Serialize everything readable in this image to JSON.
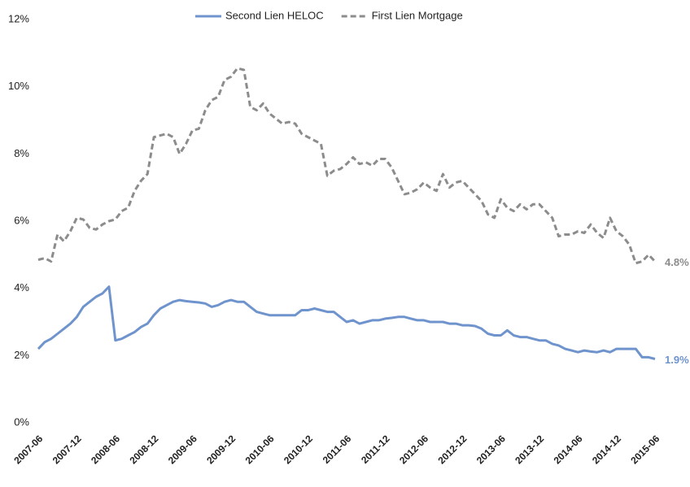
{
  "chart_data": {
    "type": "line",
    "categories": [
      "2007-06",
      null,
      null,
      null,
      null,
      null,
      "2007-12",
      null,
      null,
      null,
      null,
      null,
      "2008-06",
      null,
      null,
      null,
      null,
      null,
      "2008-12",
      null,
      null,
      null,
      null,
      null,
      "2009-06",
      null,
      null,
      null,
      null,
      null,
      "2009-12",
      null,
      null,
      null,
      null,
      null,
      "2010-06",
      null,
      null,
      null,
      null,
      null,
      "2010-12",
      null,
      null,
      null,
      null,
      null,
      "2011-06",
      null,
      null,
      null,
      null,
      null,
      "2011-12",
      null,
      null,
      null,
      null,
      null,
      "2012-06",
      null,
      null,
      null,
      null,
      null,
      "2012-12",
      null,
      null,
      null,
      null,
      null,
      "2013-06",
      null,
      null,
      null,
      null,
      null,
      "2013-12",
      null,
      null,
      null,
      null,
      null,
      "2014-06",
      null,
      null,
      null,
      null,
      null,
      "2014-12",
      null,
      null,
      null,
      null,
      null,
      "2015-06"
    ],
    "series": [
      {
        "name": "Second Lien HELOC",
        "color": "#6f94cd",
        "style": "solid",
        "values": [
          2.2,
          2.4,
          2.5,
          2.65,
          2.8,
          2.95,
          3.15,
          3.45,
          3.6,
          3.75,
          3.85,
          4.05,
          2.45,
          2.5,
          2.6,
          2.7,
          2.85,
          2.95,
          3.2,
          3.4,
          3.5,
          3.6,
          3.65,
          3.62,
          3.6,
          3.58,
          3.55,
          3.45,
          3.5,
          3.6,
          3.65,
          3.6,
          3.6,
          3.45,
          3.3,
          3.25,
          3.2,
          3.2,
          3.2,
          3.2,
          3.2,
          3.35,
          3.35,
          3.4,
          3.35,
          3.3,
          3.3,
          3.15,
          3.0,
          3.05,
          2.95,
          3.0,
          3.05,
          3.05,
          3.1,
          3.12,
          3.15,
          3.15,
          3.1,
          3.05,
          3.05,
          3.0,
          3.0,
          3.0,
          2.95,
          2.95,
          2.9,
          2.9,
          2.88,
          2.8,
          2.65,
          2.6,
          2.6,
          2.75,
          2.6,
          2.55,
          2.55,
          2.5,
          2.45,
          2.45,
          2.35,
          2.3,
          2.2,
          2.15,
          2.1,
          2.15,
          2.12,
          2.1,
          2.15,
          2.1,
          2.2,
          2.2,
          2.2,
          2.2,
          1.95,
          1.95,
          1.9
        ],
        "value_labels": [
          null,
          null,
          null,
          null,
          null,
          null,
          null,
          null,
          null,
          null,
          null,
          null,
          null,
          null,
          null,
          null,
          null,
          null,
          null,
          null,
          null,
          null,
          null,
          null,
          null,
          null,
          null,
          null,
          null,
          null,
          null,
          null,
          null,
          null,
          null,
          null,
          null,
          null,
          null,
          null,
          null,
          null,
          null,
          null,
          null,
          null,
          null,
          null,
          null,
          null,
          null,
          null,
          null,
          null,
          null,
          null,
          null,
          null,
          null,
          null,
          null,
          null,
          null,
          null,
          null,
          null,
          null,
          null,
          null,
          null,
          null,
          null,
          null,
          null,
          null,
          null,
          null,
          null,
          null,
          null,
          null,
          null,
          null,
          null,
          null,
          null,
          null,
          null,
          null,
          null,
          null,
          null,
          null,
          null,
          null,
          null,
          "1.9%"
        ]
      },
      {
        "name": "First Lien Mortgage",
        "color": "#8c8c8c",
        "style": "dashed",
        "values": [
          4.85,
          4.9,
          4.8,
          5.6,
          5.4,
          5.7,
          6.1,
          6.05,
          5.8,
          5.75,
          5.9,
          6.0,
          6.05,
          6.3,
          6.4,
          6.9,
          7.2,
          7.4,
          8.5,
          8.55,
          8.6,
          8.5,
          8.0,
          8.3,
          8.7,
          8.75,
          9.3,
          9.6,
          9.7,
          10.2,
          10.3,
          10.55,
          10.5,
          9.4,
          9.3,
          9.5,
          9.2,
          9.05,
          8.9,
          8.95,
          8.9,
          8.6,
          8.5,
          8.4,
          8.3,
          7.35,
          7.5,
          7.55,
          7.7,
          7.9,
          7.7,
          7.75,
          7.65,
          7.85,
          7.85,
          7.6,
          7.2,
          6.8,
          6.85,
          6.95,
          7.15,
          7.0,
          6.9,
          7.4,
          7.0,
          7.15,
          7.2,
          7.0,
          6.8,
          6.6,
          6.2,
          6.1,
          6.65,
          6.4,
          6.3,
          6.5,
          6.35,
          6.5,
          6.5,
          6.3,
          6.1,
          5.55,
          5.6,
          5.6,
          5.7,
          5.65,
          5.9,
          5.65,
          5.5,
          6.1,
          5.7,
          5.55,
          5.3,
          4.75,
          4.8,
          5.0,
          4.8
        ],
        "value_labels": [
          null,
          null,
          null,
          null,
          null,
          null,
          null,
          null,
          null,
          null,
          null,
          null,
          null,
          null,
          null,
          null,
          null,
          null,
          null,
          null,
          null,
          null,
          null,
          null,
          null,
          null,
          null,
          null,
          null,
          null,
          null,
          null,
          null,
          null,
          null,
          null,
          null,
          null,
          null,
          null,
          null,
          null,
          null,
          null,
          null,
          null,
          null,
          null,
          null,
          null,
          null,
          null,
          null,
          null,
          null,
          null,
          null,
          null,
          null,
          null,
          null,
          null,
          null,
          null,
          null,
          null,
          null,
          null,
          null,
          null,
          null,
          null,
          null,
          null,
          null,
          null,
          null,
          null,
          null,
          null,
          null,
          null,
          null,
          null,
          null,
          null,
          null,
          null,
          null,
          null,
          null,
          null,
          null,
          null,
          null,
          null,
          "4.8%"
        ]
      }
    ],
    "ylim": [
      0,
      12
    ],
    "yticks": [
      {
        "value": 0,
        "label": "0%"
      },
      {
        "value": 2,
        "label": "2%"
      },
      {
        "value": 4,
        "label": "4%"
      },
      {
        "value": 6,
        "label": "6%"
      },
      {
        "value": 8,
        "label": "8%"
      },
      {
        "value": 10,
        "label": "10%"
      },
      {
        "value": 12,
        "label": "12%"
      }
    ],
    "grid": false,
    "legend": "top"
  }
}
